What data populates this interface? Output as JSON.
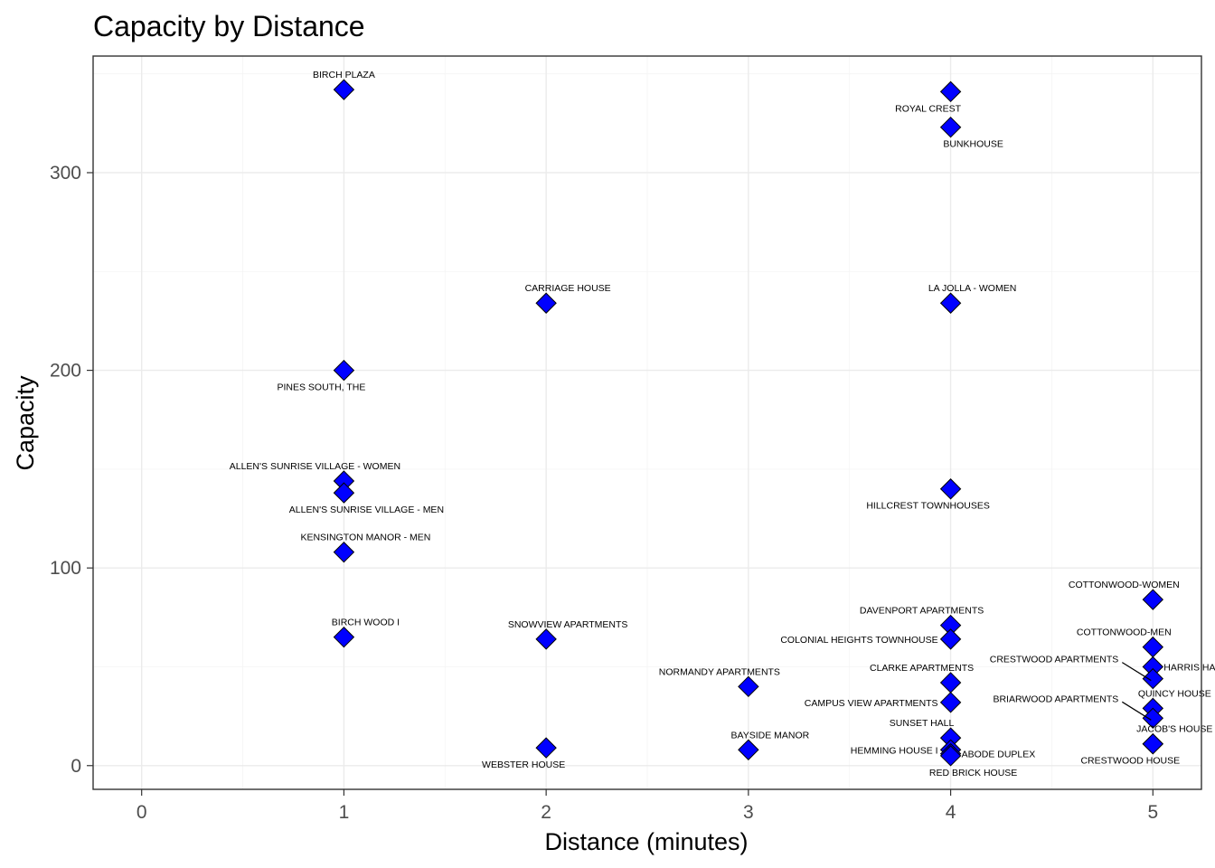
{
  "chart_data": {
    "type": "scatter",
    "title": "Capacity by Distance",
    "xlabel": "Distance (minutes)",
    "ylabel": "Capacity",
    "xlim": [
      -0.24,
      5.24
    ],
    "ylim": [
      -12,
      359
    ],
    "xticks": [
      0,
      1,
      2,
      3,
      4,
      5
    ],
    "yticks": [
      0,
      100,
      200,
      300
    ],
    "grid": true,
    "legend": "none",
    "marker_color": "#0000ff",
    "points": [
      {
        "label": "BIRCH PLAZA",
        "x": 1,
        "y": 342,
        "pos": "above"
      },
      {
        "label": "ROYAL CREST",
        "x": 4,
        "y": 341,
        "pos": "below-left"
      },
      {
        "label": "BUNKHOUSE",
        "x": 4,
        "y": 323,
        "pos": "below-right"
      },
      {
        "label": "CARRIAGE HOUSE",
        "x": 2,
        "y": 234,
        "pos": "above-right"
      },
      {
        "label": "LA JOLLA - WOMEN",
        "x": 4,
        "y": 234,
        "pos": "above-right"
      },
      {
        "label": "PINES SOUTH, THE",
        "x": 1,
        "y": 200,
        "pos": "below-left"
      },
      {
        "label": "ALLEN'S SUNRISE VILLAGE - WOMEN",
        "x": 1,
        "y": 144,
        "pos": "above-left"
      },
      {
        "label": "ALLEN'S SUNRISE VILLAGE - MEN",
        "x": 1,
        "y": 138,
        "pos": "below-right"
      },
      {
        "label": "HILLCREST TOWNHOUSES",
        "x": 4,
        "y": 140,
        "pos": "below-left"
      },
      {
        "label": "KENSINGTON MANOR - MEN",
        "x": 1,
        "y": 108,
        "pos": "above-right"
      },
      {
        "label": "COTTONWOOD-WOMEN",
        "x": 5,
        "y": 84,
        "pos": "above-left"
      },
      {
        "label": "DAVENPORT APARTMENTS",
        "x": 4,
        "y": 71,
        "pos": "above-left"
      },
      {
        "label": "BIRCH WOOD I",
        "x": 1,
        "y": 65,
        "pos": "above-right"
      },
      {
        "label": "SNOWVIEW APARTMENTS",
        "x": 2,
        "y": 64,
        "pos": "above-right"
      },
      {
        "label": "COLONIAL HEIGHTS TOWNHOUSE",
        "x": 4,
        "y": 64,
        "pos": "left"
      },
      {
        "label": "COTTONWOOD-MEN",
        "x": 5,
        "y": 60,
        "pos": "above-left"
      },
      {
        "label": "HARRIS HALL",
        "x": 5,
        "y": 50,
        "pos": "right"
      },
      {
        "label": "CRESTWOOD APARTMENTS",
        "x": 5,
        "y": 44,
        "pos": "leader-left"
      },
      {
        "label": "CLARKE APARTMENTS",
        "x": 4,
        "y": 42,
        "pos": "above-left"
      },
      {
        "label": "NORMANDY APARTMENTS",
        "x": 3,
        "y": 40,
        "pos": "above-left"
      },
      {
        "label": "CAMPUS VIEW APARTMENTS",
        "x": 4,
        "y": 32,
        "pos": "left"
      },
      {
        "label": "QUINCY HOUSE",
        "x": 5,
        "y": 29,
        "pos": "above-right"
      },
      {
        "label": "BRIARWOOD APARTMENTS",
        "x": 5,
        "y": 24,
        "pos": "leader-left"
      },
      {
        "label": "SUNSET HALL",
        "x": 4,
        "y": 14,
        "pos": "above-left"
      },
      {
        "label": "JACOB'S HOUSE",
        "x": 5,
        "y": 11,
        "pos": "above-right"
      },
      {
        "label": "WEBSTER HOUSE",
        "x": 2,
        "y": 9,
        "pos": "below-left"
      },
      {
        "label": "BAYSIDE MANOR",
        "x": 3,
        "y": 8,
        "pos": "above-right"
      },
      {
        "label": "HEMMING HOUSE I",
        "x": 4,
        "y": 8,
        "pos": "left"
      },
      {
        "label": "ABODE DUPLEX",
        "x": 4,
        "y": 6,
        "pos": "right"
      },
      {
        "label": "RED BRICK HOUSE",
        "x": 4,
        "y": 5,
        "pos": "below-right"
      },
      {
        "label": "CRESTWOOD HOUSE",
        "x": 5,
        "y": 11,
        "pos": "below-left"
      }
    ]
  }
}
